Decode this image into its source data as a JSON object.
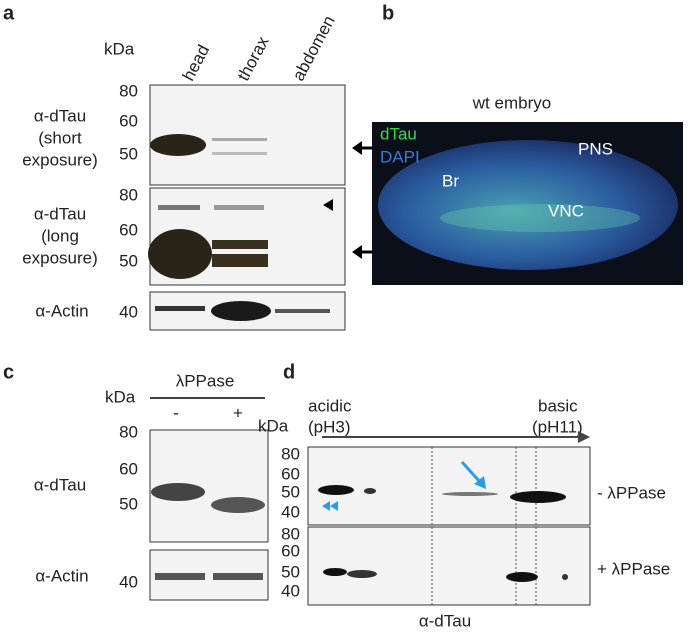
{
  "panel_a": {
    "label": "a",
    "unit": "kDa",
    "lanes": [
      "head",
      "thorax",
      "abdomen"
    ],
    "blots": [
      {
        "label": [
          "α-dTau",
          "(short",
          "exposure)"
        ],
        "markers": [
          "80",
          "60",
          "50"
        ]
      },
      {
        "label": [
          "α-dTau",
          "(long",
          "exposure)"
        ],
        "markers": [
          "80",
          "60",
          "50"
        ]
      },
      {
        "label": [
          "α-Actin"
        ],
        "markers": [
          "40"
        ]
      }
    ]
  },
  "panel_b": {
    "label": "b",
    "title": "wt embryo",
    "channels": [
      "dTau",
      "DAPI"
    ],
    "regions": [
      "Br",
      "PNS",
      "VNC"
    ]
  },
  "panel_c": {
    "label": "c",
    "unit": "kDa",
    "treatment": "λPPase",
    "lanes": [
      "-",
      "+"
    ],
    "blots": [
      {
        "label": [
          "α-dTau"
        ],
        "markers": [
          "80",
          "60",
          "50"
        ]
      },
      {
        "label": [
          "α-Actin"
        ],
        "markers": [
          "40"
        ]
      }
    ]
  },
  "panel_d": {
    "label": "d",
    "unit": "kDa",
    "acidic": [
      "acidic",
      "(pH3)"
    ],
    "basic": [
      "basic",
      "(pH11)"
    ],
    "blots": [
      {
        "label": "- λPPase",
        "markers": [
          "80",
          "60",
          "50",
          "40"
        ]
      },
      {
        "label": "+ λPPase",
        "markers": [
          "80",
          "60",
          "50",
          "40"
        ]
      }
    ],
    "antibody": "α-dTau"
  }
}
